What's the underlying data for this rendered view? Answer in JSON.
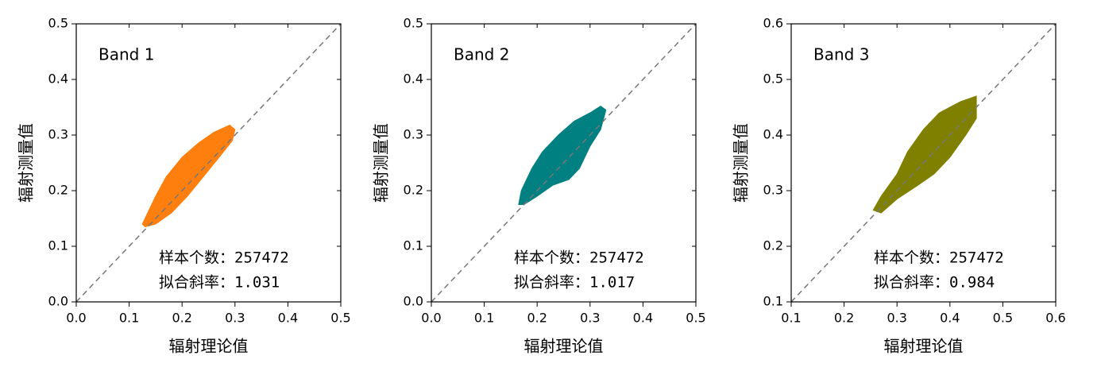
{
  "chart_data": [
    {
      "type": "scatter",
      "label": "Band 1",
      "color": "#ff7f0e",
      "x": [
        0.125,
        0.13,
        0.15,
        0.17,
        0.2,
        0.23,
        0.26,
        0.29,
        0.3,
        0.295,
        0.27,
        0.24,
        0.21,
        0.18,
        0.15,
        0.13
      ],
      "y": [
        0.14,
        0.15,
        0.19,
        0.225,
        0.26,
        0.285,
        0.305,
        0.318,
        0.31,
        0.29,
        0.26,
        0.225,
        0.19,
        0.16,
        0.14,
        0.135
      ],
      "xlim": [
        0,
        0.5
      ],
      "ylim": [
        0,
        0.5
      ],
      "xticks": [
        {
          "value": 0,
          "label": "0.0"
        },
        0.1,
        0.2,
        0.3,
        0.4,
        0.5
      ],
      "yticks": [
        {
          "value": 0,
          "label": "0.0"
        },
        0.1,
        0.2,
        0.3,
        0.4,
        0.5
      ],
      "xlabel": "辐射理论值",
      "ylabel": "辐射测量值",
      "annotations": [
        "样本个数：257472",
        "拟合斜率：1.031"
      ]
    },
    {
      "type": "scatter",
      "label": "Band 2",
      "color": "#008080",
      "x": [
        0.165,
        0.17,
        0.19,
        0.21,
        0.24,
        0.27,
        0.3,
        0.32,
        0.33,
        0.32,
        0.3,
        0.28,
        0.26,
        0.23,
        0.2,
        0.175
      ],
      "y": [
        0.175,
        0.2,
        0.24,
        0.27,
        0.3,
        0.325,
        0.34,
        0.352,
        0.345,
        0.31,
        0.28,
        0.24,
        0.22,
        0.21,
        0.19,
        0.175
      ],
      "xlim": [
        0,
        0.5
      ],
      "ylim": [
        0,
        0.5
      ],
      "xticks": [
        {
          "value": 0,
          "label": "0.0"
        },
        0.1,
        0.2,
        0.3,
        0.4,
        0.5
      ],
      "yticks": [
        {
          "value": 0,
          "label": "0.0"
        },
        0.1,
        0.2,
        0.3,
        0.4,
        0.5
      ],
      "xlabel": "辐射理论值",
      "ylabel": "辐射测量值",
      "annotations": [
        "样本个数：257472",
        "拟合斜率：1.017"
      ]
    },
    {
      "type": "scatter",
      "label": "Band 3",
      "color": "#808000",
      "x": [
        0.255,
        0.27,
        0.3,
        0.32,
        0.35,
        0.38,
        0.42,
        0.45,
        0.45,
        0.43,
        0.4,
        0.37,
        0.34,
        0.3,
        0.27
      ],
      "y": [
        0.265,
        0.29,
        0.33,
        0.37,
        0.41,
        0.44,
        0.46,
        0.47,
        0.43,
        0.4,
        0.36,
        0.33,
        0.31,
        0.285,
        0.26
      ],
      "xlim": [
        0.1,
        0.6
      ],
      "ylim": [
        0.1,
        0.6
      ],
      "xticks": [
        0.1,
        0.2,
        0.3,
        0.4,
        0.5,
        0.6
      ],
      "yticks": [
        0.1,
        0.2,
        0.3,
        0.4,
        0.5,
        0.6
      ],
      "xlabel": "辐射理论值",
      "ylabel": "辐射测量值",
      "annotations": [
        "样本个数：257472",
        "拟合斜率：0.984"
      ]
    }
  ]
}
